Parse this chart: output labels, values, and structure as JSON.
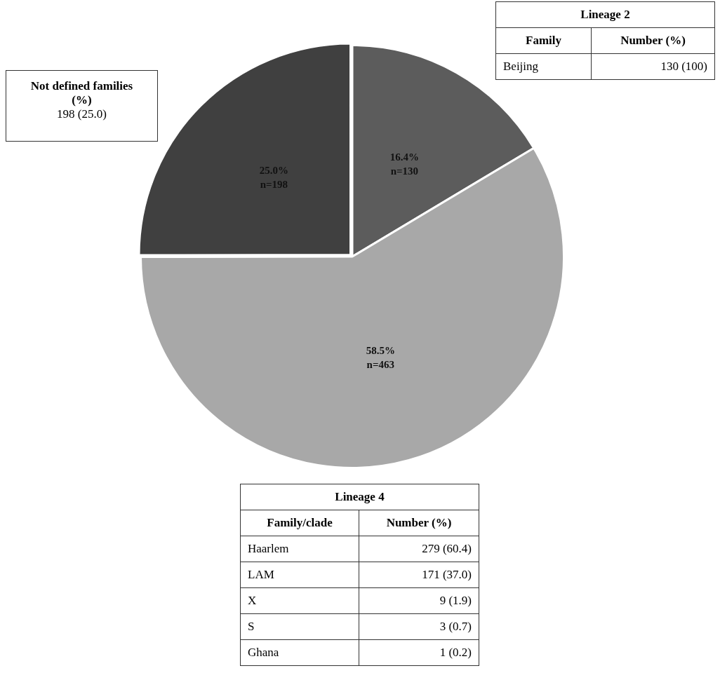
{
  "chart_data": {
    "type": "pie",
    "categories": [
      null,
      null,
      null
    ],
    "values": [
      16.4,
      58.5,
      25.0
    ],
    "colors": [
      "#5c5c5c",
      "#a8a8a8",
      "#404040"
    ],
    "value_labels": [
      "16.4%\nn=130",
      "58.5%\nn=463",
      "25.0%\nn=198"
    ],
    "annotations": [
      "Not defined families  (%)",
      "198 (25.0)",
      "Lineage 2",
      "Family",
      "Number (%)",
      "Beijing",
      "130 (100)",
      "Lineage 4",
      "Family/clade",
      "Number (%)",
      "Haarlem",
      "279 (60.4)",
      "LAM",
      "171 (37.0)",
      "X",
      "9 (1.9)",
      "S",
      "3 (0.7)",
      "Ghana",
      "1 (0.2)"
    ]
  }
}
